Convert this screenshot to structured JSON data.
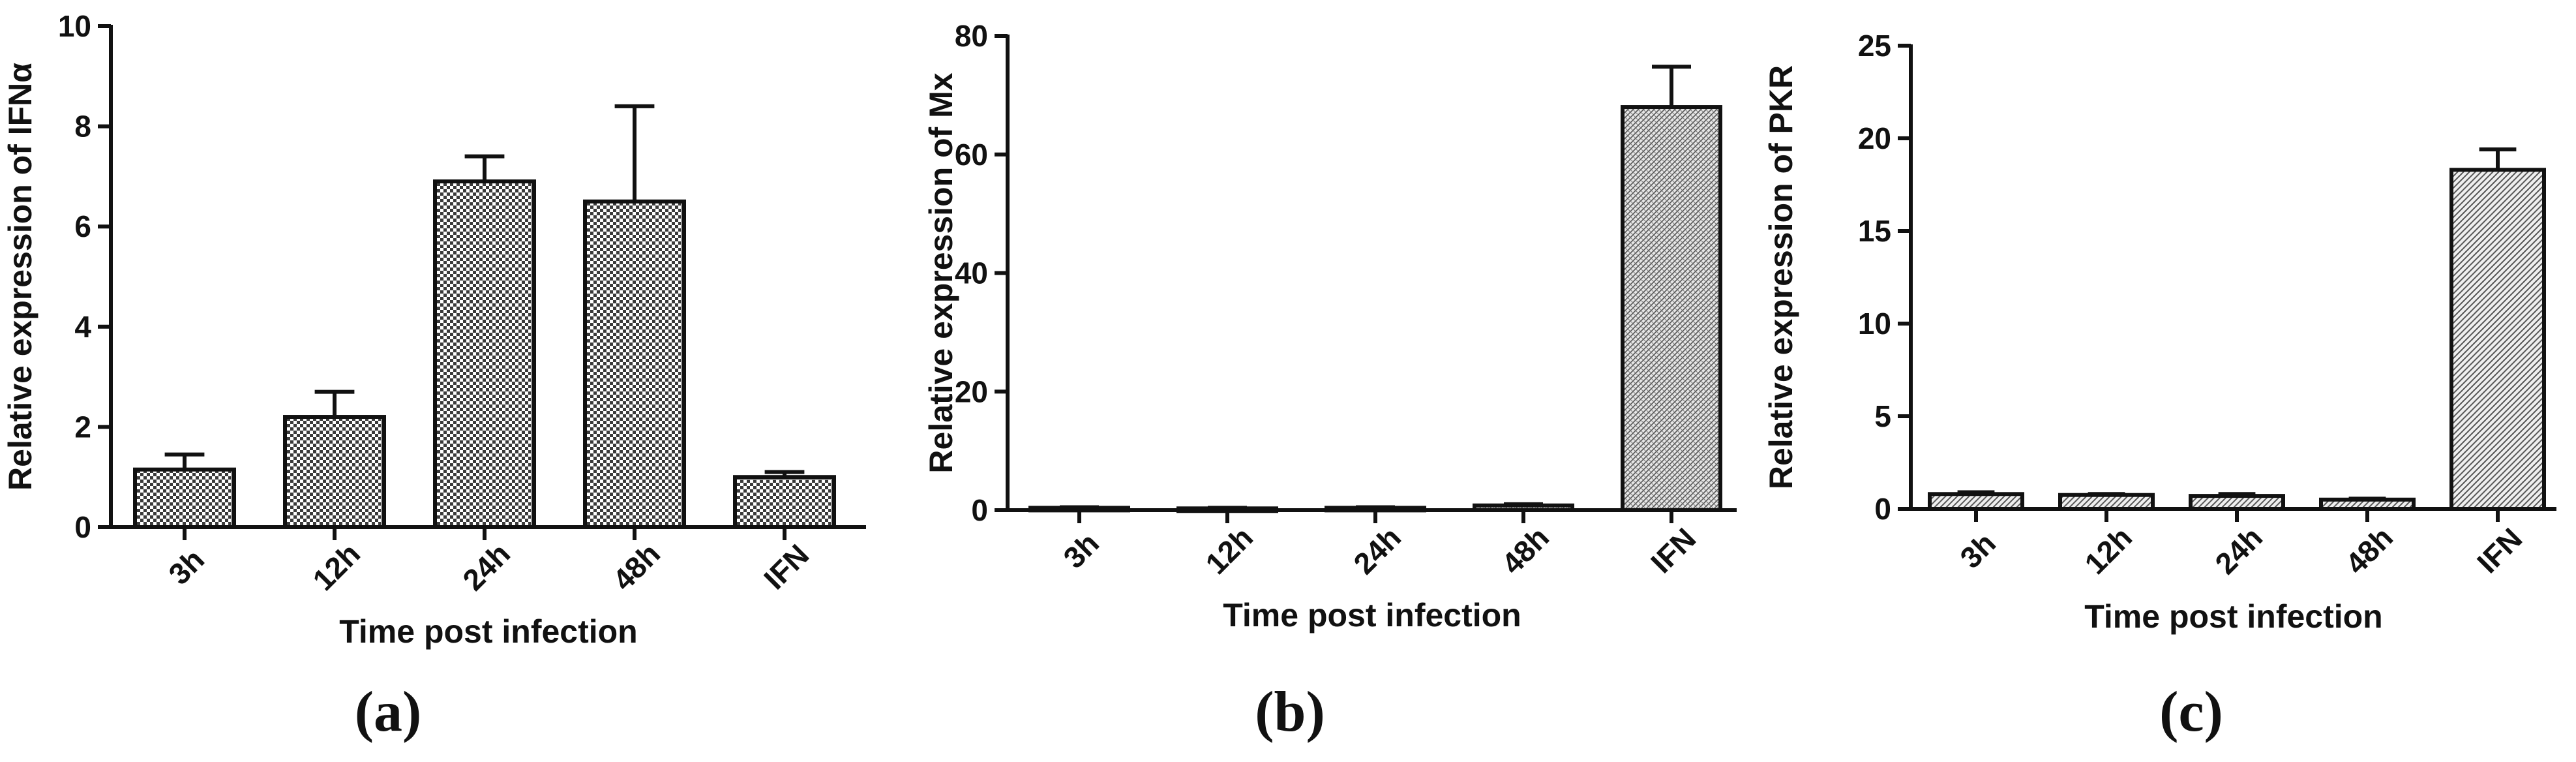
{
  "chart_data": [
    {
      "type": "bar",
      "panel_label": "(a)",
      "categories": [
        "3h",
        "12h",
        "24h",
        "48h",
        "IFN"
      ],
      "values": [
        1.15,
        2.2,
        6.9,
        6.5,
        1.0
      ],
      "errors": [
        0.3,
        0.5,
        0.5,
        1.9,
        0.1
      ],
      "xlabel": "Time post infection",
      "ylabel": "Relative expression of IFNα",
      "ylim": [
        0,
        10
      ],
      "yticks": [
        0,
        2,
        4,
        6,
        8,
        10
      ],
      "pattern": "checker",
      "grid": false,
      "legend": "none"
    },
    {
      "type": "bar",
      "panel_label": "(b)",
      "categories": [
        "3h",
        "12h",
        "24h",
        "48h",
        "IFN"
      ],
      "values": [
        0.4,
        0.3,
        0.4,
        0.8,
        68
      ],
      "errors": [
        0.1,
        0.1,
        0.1,
        0.2,
        6.8
      ],
      "xlabel": "Time post infection",
      "ylabel": "Relative expression of Mx",
      "ylim": [
        0,
        80
      ],
      "yticks": [
        0,
        20,
        40,
        60,
        80
      ],
      "pattern": "hatch",
      "grid": false,
      "legend": "none"
    },
    {
      "type": "bar",
      "panel_label": "(c)",
      "categories": [
        "3h",
        "12h",
        "24h",
        "48h",
        "IFN"
      ],
      "values": [
        0.8,
        0.75,
        0.7,
        0.5,
        18.3
      ],
      "errors": [
        0.1,
        0.05,
        0.1,
        0.05,
        1.1
      ],
      "xlabel": "Time post infection",
      "ylabel": "Relative expression of PKR",
      "ylim": [
        0,
        25
      ],
      "yticks": [
        0,
        5,
        10,
        15,
        20,
        25
      ],
      "pattern": "diagonal",
      "grid": false,
      "legend": "none"
    }
  ]
}
